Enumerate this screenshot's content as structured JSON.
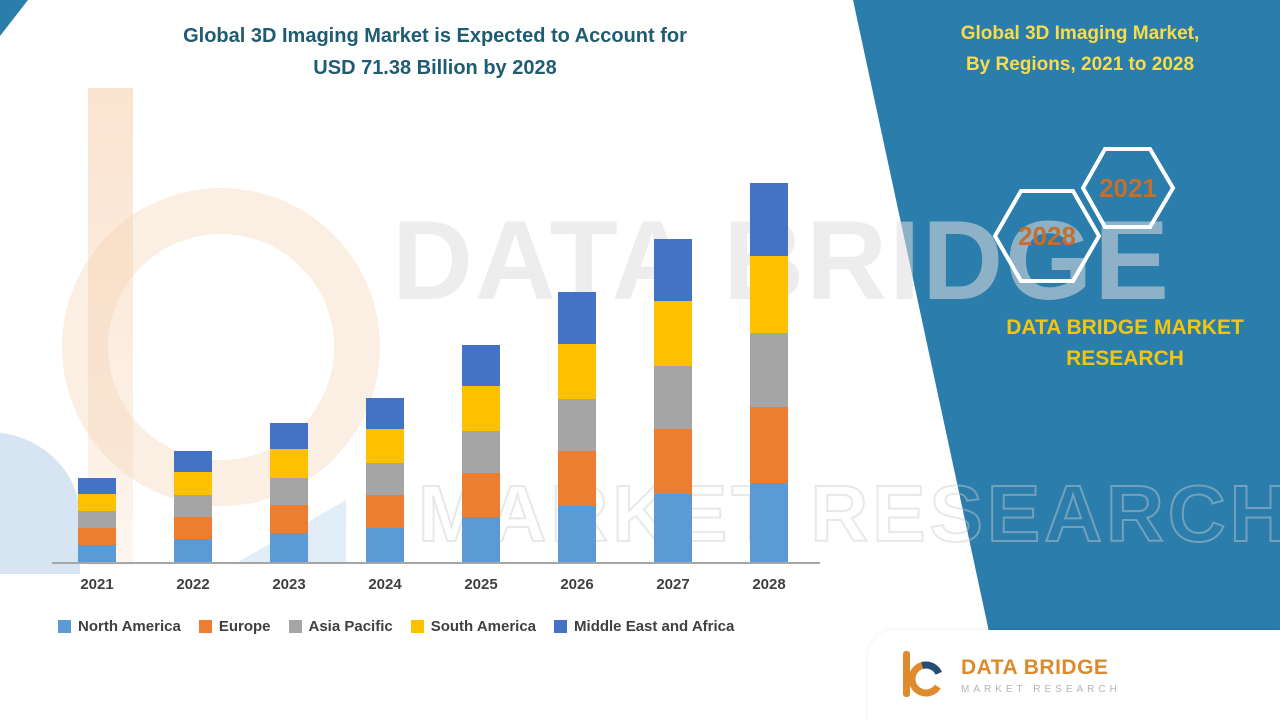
{
  "title": {
    "line1": "Global 3D Imaging Market is Expected to Account for",
    "line2": "USD 71.38 Billion by 2028"
  },
  "right_panel": {
    "title_line1": "Global 3D Imaging Market,",
    "title_line2": "By Regions, 2021 to 2028",
    "hex_back": "2028",
    "hex_front": "2021",
    "brand_line1": "DATA BRIDGE MARKET",
    "brand_line2": "RESEARCH"
  },
  "watermark": {
    "line1": "DATA BRIDGE",
    "line2": "MARKET RESEARCH"
  },
  "footer_logo": {
    "name": "DATA BRIDGE",
    "tagline": "MARKET RESEARCH"
  },
  "colors": {
    "panel_teal": "#2b7dab",
    "panel_title_yellow": "#f9dc4b",
    "brand_gold": "#f2c511",
    "hex_number_orange": "#c2702e",
    "chart_title_teal": "#1f5c73"
  },
  "chart_data": {
    "type": "bar",
    "stacked": true,
    "title": "Global 3D Imaging Market is Expected to Account for USD 71.38 Billion by 2028",
    "categories": [
      "2021",
      "2022",
      "2023",
      "2024",
      "2025",
      "2026",
      "2027",
      "2028"
    ],
    "series": [
      {
        "name": "North America",
        "color": "#5B9BD5",
        "values": [
          3.4,
          4.5,
          5.6,
          6.6,
          8.7,
          10.8,
          12.9,
          15.1
        ]
      },
      {
        "name": "Europe",
        "color": "#ED7D31",
        "values": [
          3.2,
          4.2,
          5.3,
          6.2,
          8.2,
          10.2,
          12.2,
          14.3
        ]
      },
      {
        "name": "Asia Pacific",
        "color": "#A5A5A5",
        "values": [
          3.1,
          4.1,
          5.1,
          6.0,
          8.0,
          9.9,
          11.9,
          13.9
        ]
      },
      {
        "name": "South America",
        "color": "#FFC000",
        "values": [
          3.3,
          4.3,
          5.4,
          6.3,
          8.3,
          10.3,
          12.3,
          14.4
        ]
      },
      {
        "name": "Middle East and Africa",
        "color": "#4472C4",
        "values": [
          3.0,
          4.0,
          5.0,
          5.9,
          7.8,
          9.8,
          11.7,
          13.7
        ]
      }
    ],
    "totals_usd_billion": [
      16.0,
      21.1,
      26.4,
      31.0,
      41.0,
      51.0,
      61.0,
      71.4
    ],
    "ylim": [
      0,
      89
    ],
    "legend_position": "bottom",
    "grid": false
  }
}
